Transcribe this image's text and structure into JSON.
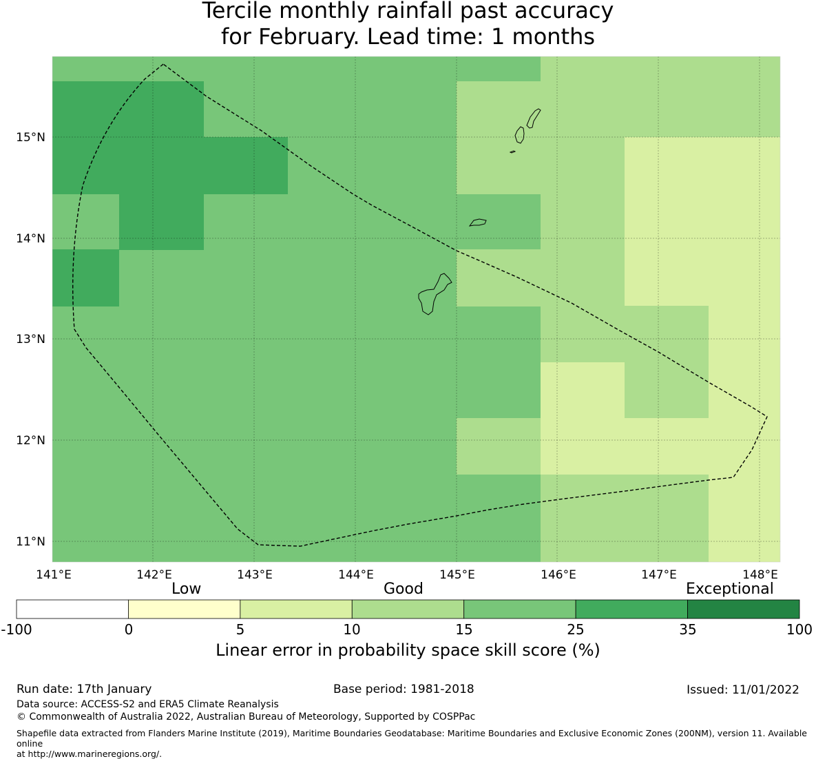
{
  "title": {
    "line1": "Tercile monthly rainfall past accuracy",
    "line2": "for February. Lead time: 1 months"
  },
  "map": {
    "lon_range": [
      141.0,
      148.2
    ],
    "lat_range": [
      10.8,
      15.8
    ],
    "lon_ticks": [
      141,
      142,
      143,
      144,
      145,
      146,
      147,
      148
    ],
    "lon_tick_labels": [
      "141°E",
      "142°E",
      "143°E",
      "144°E",
      "145°E",
      "146°E",
      "147°E",
      "148°E"
    ],
    "lat_ticks": [
      15,
      14,
      13,
      12,
      11
    ],
    "lat_tick_labels": [
      "15°N",
      "14°N",
      "13°N",
      "12°N",
      "11°N"
    ]
  },
  "colorbar": {
    "category_labels": [
      "Low",
      "Good",
      "Exceptional"
    ],
    "bins": [
      {
        "from": -100,
        "to": 0,
        "color": "#ffffff"
      },
      {
        "from": 0,
        "to": 5,
        "color": "#ffffcc"
      },
      {
        "from": 5,
        "to": 10,
        "color": "#d9f0a3"
      },
      {
        "from": 10,
        "to": 15,
        "color": "#addd8e"
      },
      {
        "from": 15,
        "to": 25,
        "color": "#78c679"
      },
      {
        "from": 25,
        "to": 35,
        "color": "#41ab5d"
      },
      {
        "from": 35,
        "to": 100,
        "color": "#238443"
      }
    ],
    "tick_labels": [
      "-100",
      "0",
      "5",
      "10",
      "15",
      "25",
      "35",
      "100"
    ],
    "title": "Linear error in probability space skill score (%)"
  },
  "footer": {
    "run_date": "Run date: 17th January",
    "base_period": "Base period: 1981-2018",
    "issued": "Issued: 11/01/2022",
    "data_source": "Data source: ACCESS-S2 and ERA5 Climate Reanalysis",
    "copyright": "© Commonwealth of Australia 2022, Australian Bureau of Meteorology, Supported by COSPPac",
    "shapefile_line1": "Shapefile data extracted from Flanders Marine Institute (2019), Maritime Boundaries Geodatabase: Maritime Boundaries and Exclusive Economic Zones (200NM), version 11. Available online",
    "shapefile_line2": "at http://www.marineregions.org/."
  }
}
